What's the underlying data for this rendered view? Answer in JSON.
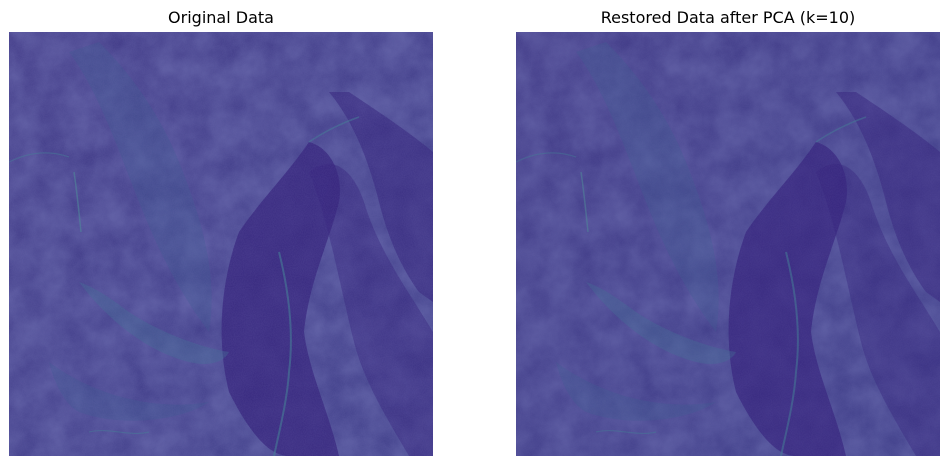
{
  "panels": [
    {
      "title": "Original Data",
      "content": "satellite terrain image rendered with viridis colormap"
    },
    {
      "title": "Restored Data after PCA (k=10)",
      "content": "PCA reconstruction of the same satellite terrain image"
    }
  ],
  "colors": {
    "background": "#ffffff",
    "image_base": "#3d2f80",
    "image_dark": "#33207a",
    "image_light": "#3a5a8e",
    "highlight": "#3f7e93"
  }
}
